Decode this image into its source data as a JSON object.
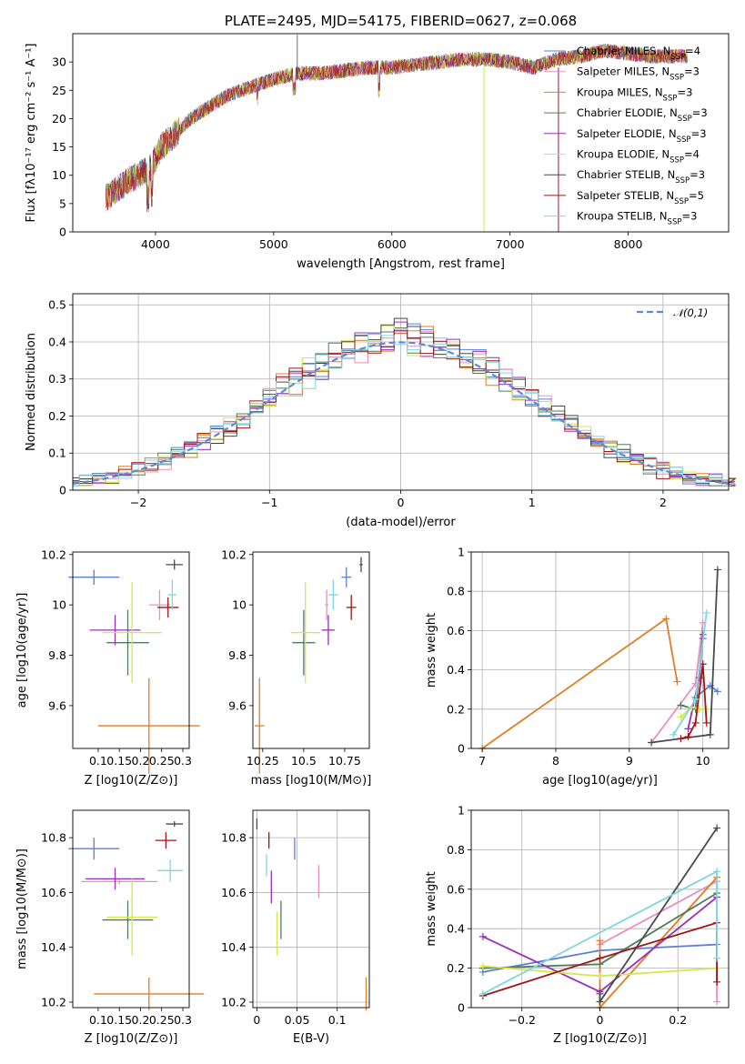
{
  "chart_data": [
    {
      "id": "spectrum",
      "type": "line",
      "title": "PLATE=2495, MJD=54175, FIBERID=0627, z=0.068",
      "xlabel": "wavelength [Angstrom, rest frame]",
      "ylabel": "Flux [fλ10⁻¹⁷ erg cm⁻² s⁻¹ A⁻¹]",
      "xlim": [
        3300,
        8850
      ],
      "ylim": [
        0,
        35
      ],
      "xticks": [
        4000,
        5000,
        6000,
        7000,
        8000
      ],
      "yticks": [
        0,
        5,
        10,
        15,
        20,
        25,
        30
      ],
      "grid": false,
      "legend_position": "right",
      "continuum": {
        "x": [
          3580,
          3700,
          3850,
          3950,
          4050,
          4150,
          4300,
          4450,
          4600,
          4800,
          5000,
          5200,
          5400,
          5600,
          5800,
          6000,
          6200,
          6400,
          6600,
          6800,
          7000,
          7200,
          7400,
          7600,
          7800,
          8000,
          8200,
          8400,
          8500
        ],
        "y": [
          6,
          8,
          10,
          11,
          15,
          17,
          20,
          22,
          24,
          25.5,
          27,
          28,
          28,
          28.5,
          29,
          29,
          29.5,
          30,
          30.5,
          30.5,
          30,
          29,
          30.5,
          31,
          32,
          31.5,
          31,
          31,
          31
        ]
      },
      "series": [
        {
          "name": "Chabrier MILES, N$_{SSP}$=4",
          "color": "#5b7fd6"
        },
        {
          "name": "Salpeter MILES, N$_{SSP}$=3",
          "color": "#e88fc4"
        },
        {
          "name": "Kroupa MILES, N$_{SSP}$=3",
          "color": "#e07d27"
        },
        {
          "name": "Chabrier ELODIE, N$_{SSP}$=3",
          "color": "#4f7d5a"
        },
        {
          "name": "Salpeter ELODIE, N$_{SSP}$=3",
          "color": "#9a2fbd"
        },
        {
          "name": "Kroupa ELODIE, N$_{SSP}$=4",
          "color": "#d6e64d"
        },
        {
          "name": "Chabrier STELIB, N$_{SSP}$=3",
          "color": "#4a4a4a"
        },
        {
          "name": "Salpeter STELIB, N$_{SSP}$=5",
          "color": "#a11414"
        },
        {
          "name": "Kroupa STELIB, N$_{SSP}$=3",
          "color": "#7fd6e0"
        }
      ]
    },
    {
      "id": "residuals",
      "type": "line",
      "xlabel": "(data-model)/error",
      "ylabel": "Normed distribution",
      "xlim": [
        -2.5,
        2.5
      ],
      "ylim": [
        0,
        0.53
      ],
      "xticks": [
        -2,
        -1,
        0,
        1,
        2
      ],
      "yticks": [
        0.0,
        0.1,
        0.2,
        0.3,
        0.4,
        0.5
      ],
      "grid": true,
      "legend_position": "top-right",
      "gaussian_label": "$\\mathcal{N}(0,1)$",
      "gaussian_color": "#5b8ad6",
      "bin_width": 0.1,
      "bin_start": -2.55
    },
    {
      "id": "age_vs_Z",
      "type": "scatter",
      "xlabel": "Z [log10(Z/Z⊙)]",
      "ylabel": "age  [log10(age/yr)]",
      "xlim": [
        0.04,
        0.315
      ],
      "ylim": [
        9.43,
        10.21
      ],
      "xticks": [
        0.1,
        0.15,
        0.2,
        0.25,
        0.3
      ],
      "yticks": [
        9.6,
        9.8,
        10.0,
        10.2
      ],
      "grid": false,
      "points": [
        {
          "x": 0.09,
          "xe": 0.06,
          "y": 10.11,
          "ye": 0.03,
          "color": "#5b7fd6"
        },
        {
          "x": 0.245,
          "xe": 0.025,
          "y": 10.0,
          "ye": 0.06,
          "color": "#e88fc4"
        },
        {
          "x": 0.22,
          "xe": 0.12,
          "y": 9.52,
          "ye": 0.19,
          "color": "#e07d27"
        },
        {
          "x": 0.17,
          "xe": 0.05,
          "y": 9.85,
          "ye": 0.13,
          "color": "#4f7d5a"
        },
        {
          "x": 0.14,
          "xe": 0.06,
          "y": 9.9,
          "ye": 0.06,
          "color": "#9a2fbd"
        },
        {
          "x": 0.18,
          "xe": 0.07,
          "y": 9.89,
          "ye": 0.2,
          "color": "#d6e64d"
        },
        {
          "x": 0.28,
          "xe": 0.02,
          "y": 10.16,
          "ye": 0.02,
          "color": "#4a4a4a"
        },
        {
          "x": 0.265,
          "xe": 0.025,
          "y": 9.99,
          "ye": 0.04,
          "color": "#a11414"
        },
        {
          "x": 0.275,
          "xe": 0.01,
          "y": 10.04,
          "ye": 0.06,
          "color": "#7fd6e0"
        }
      ]
    },
    {
      "id": "age_vs_mass",
      "type": "scatter",
      "xlabel": "mass [log10(M/M⊙)]",
      "ylabel": "",
      "xlim": [
        10.19,
        10.9
      ],
      "ylim": [
        9.43,
        10.21
      ],
      "xticks": [
        10.25,
        10.5,
        10.75
      ],
      "yticks": [
        9.6,
        9.8,
        10.0,
        10.2
      ],
      "grid": false,
      "points": [
        {
          "x": 10.76,
          "xe": 0.03,
          "y": 10.11,
          "ye": 0.04,
          "color": "#5b7fd6"
        },
        {
          "x": 10.64,
          "xe": 0.01,
          "y": 10.0,
          "ye": 0.06,
          "color": "#e88fc4"
        },
        {
          "x": 10.23,
          "xe": 0.03,
          "y": 9.52,
          "ye": 0.19,
          "color": "#e07d27"
        },
        {
          "x": 10.5,
          "xe": 0.07,
          "y": 9.85,
          "ye": 0.13,
          "color": "#4f7d5a"
        },
        {
          "x": 10.65,
          "xe": 0.04,
          "y": 9.9,
          "ye": 0.06,
          "color": "#9a2fbd"
        },
        {
          "x": 10.51,
          "xe": 0.09,
          "y": 9.89,
          "ye": 0.2,
          "color": "#d6e64d"
        },
        {
          "x": 10.85,
          "xe": 0.01,
          "y": 10.16,
          "ye": 0.03,
          "color": "#4a4a4a"
        },
        {
          "x": 10.79,
          "xe": 0.03,
          "y": 9.99,
          "ye": 0.05,
          "color": "#a11414"
        },
        {
          "x": 10.68,
          "xe": 0.03,
          "y": 10.04,
          "ye": 0.06,
          "color": "#7fd6e0"
        }
      ]
    },
    {
      "id": "weight_vs_age",
      "type": "line",
      "xlabel": "age  [log10(age/yr)]",
      "ylabel": "mass weight",
      "xlim": [
        6.85,
        10.35
      ],
      "ylim": [
        0,
        1
      ],
      "xticks": [
        7,
        8,
        9,
        10
      ],
      "yticks": [
        0.0,
        0.2,
        0.4,
        0.6,
        0.8,
        1.0
      ],
      "grid": true,
      "series": [
        {
          "color": "#5b7fd6",
          "x": [
            9.9,
            10.1,
            10.2
          ],
          "y": [
            0.26,
            0.32,
            0.29
          ]
        },
        {
          "color": "#e88fc4",
          "x": [
            9.3,
            9.9,
            10.0
          ],
          "y": [
            0.03,
            0.33,
            0.64
          ]
        },
        {
          "color": "#e07d27",
          "x": [
            7.0,
            9.5,
            9.65
          ],
          "y": [
            0.0,
            0.66,
            0.34
          ]
        },
        {
          "color": "#4f7d5a",
          "x": [
            9.7,
            9.9,
            10.0
          ],
          "y": [
            0.22,
            0.2,
            0.58
          ]
        },
        {
          "color": "#9a2fbd",
          "x": [
            9.8,
            9.95,
            10.0
          ],
          "y": [
            0.1,
            0.36,
            0.56
          ]
        },
        {
          "color": "#d6e64d",
          "x": [
            9.7,
            9.85,
            9.95,
            10.05
          ],
          "y": [
            0.16,
            0.21,
            0.2,
            0.2
          ]
        },
        {
          "color": "#4a4a4a",
          "x": [
            9.3,
            10.1,
            10.2
          ],
          "y": [
            0.03,
            0.07,
            0.91
          ]
        },
        {
          "color": "#a11414",
          "x": [
            9.7,
            9.8,
            9.9,
            10.0,
            10.05
          ],
          "y": [
            0.05,
            0.06,
            0.13,
            0.43,
            0.13
          ]
        },
        {
          "color": "#7fd6e0",
          "x": [
            9.6,
            9.9,
            10.05
          ],
          "y": [
            0.07,
            0.25,
            0.69
          ]
        }
      ]
    },
    {
      "id": "mass_vs_Z",
      "type": "scatter",
      "xlabel": "Z [log10(Z/Z⊙)]",
      "ylabel": "mass [log10(M/M⊙)]",
      "xlim": [
        0.04,
        0.315
      ],
      "ylim": [
        10.18,
        10.9
      ],
      "xticks": [
        0.1,
        0.15,
        0.2,
        0.25,
        0.3
      ],
      "yticks": [
        10.2,
        10.4,
        10.6,
        10.8
      ],
      "grid": false,
      "points": [
        {
          "x": 0.09,
          "xe": 0.06,
          "y": 10.76,
          "ye": 0.04,
          "color": "#5b7fd6"
        },
        {
          "x": 0.15,
          "xe": 0.09,
          "y": 10.64,
          "ye": 0.01,
          "color": "#e88fc4"
        },
        {
          "x": 0.22,
          "xe": 0.13,
          "y": 10.23,
          "ye": 0.06,
          "color": "#e07d27"
        },
        {
          "x": 0.17,
          "xe": 0.06,
          "y": 10.5,
          "ye": 0.07,
          "color": "#4f7d5a"
        },
        {
          "x": 0.14,
          "xe": 0.07,
          "y": 10.65,
          "ye": 0.04,
          "color": "#9a2fbd"
        },
        {
          "x": 0.18,
          "xe": 0.06,
          "y": 10.51,
          "ye": 0.14,
          "color": "#d6e64d"
        },
        {
          "x": 0.28,
          "xe": 0.02,
          "y": 10.85,
          "ye": 0.01,
          "color": "#4a4a4a"
        },
        {
          "x": 0.26,
          "xe": 0.025,
          "y": 10.79,
          "ye": 0.03,
          "color": "#a11414"
        },
        {
          "x": 0.27,
          "xe": 0.03,
          "y": 10.68,
          "ye": 0.04,
          "color": "#7fd6e0"
        }
      ]
    },
    {
      "id": "mass_vs_ebv",
      "type": "scatter",
      "xlabel": "E(B-V)",
      "ylabel": "",
      "xlim": [
        -0.005,
        0.14
      ],
      "ylim": [
        10.18,
        10.9
      ],
      "xticks": [
        0.0,
        0.05,
        0.1
      ],
      "yticks": [
        10.2,
        10.4,
        10.6,
        10.8
      ],
      "grid": true,
      "points": [
        {
          "x": 0.047,
          "y": 10.76,
          "ye": 0.04,
          "color": "#5b7fd6"
        },
        {
          "x": 0.077,
          "y": 10.64,
          "ye": 0.06,
          "color": "#e88fc4"
        },
        {
          "x": 0.136,
          "y": 10.23,
          "ye": 0.06,
          "color": "#e07d27"
        },
        {
          "x": 0.03,
          "y": 10.5,
          "ye": 0.07,
          "color": "#4f7d5a"
        },
        {
          "x": 0.018,
          "y": 10.62,
          "ye": 0.06,
          "color": "#9a2fbd"
        },
        {
          "x": 0.025,
          "y": 10.45,
          "ye": 0.08,
          "color": "#d6e64d"
        },
        {
          "x": 0.0,
          "y": 10.85,
          "ye": 0.02,
          "color": "#4a4a4a"
        },
        {
          "x": 0.015,
          "y": 10.79,
          "ye": 0.03,
          "color": "#a11414"
        },
        {
          "x": 0.012,
          "y": 10.7,
          "ye": 0.04,
          "color": "#7fd6e0"
        }
      ]
    },
    {
      "id": "weight_vs_Z",
      "type": "line",
      "xlabel": "Z [log10(Z/Z⊙)]",
      "ylabel": "mass weight",
      "xlim": [
        -0.33,
        0.33
      ],
      "ylim": [
        0,
        1
      ],
      "xticks": [
        -0.2,
        0.0,
        0.2
      ],
      "yticks": [
        0.0,
        0.2,
        0.4,
        0.6,
        0.8,
        1.0
      ],
      "grid": true,
      "series": [
        {
          "color": "#5b7fd6",
          "x": [
            -0.3,
            0.0,
            0.3
          ],
          "y": [
            0.18,
            0.29,
            0.32
          ]
        },
        {
          "color": "#e88fc4",
          "x": [
            0.0,
            0.3,
            0.3
          ],
          "y": [
            0.32,
            0.64,
            0.03
          ]
        },
        {
          "color": "#e07d27",
          "x": [
            0.0,
            0.0,
            0.3
          ],
          "y": [
            0.34,
            0.0,
            0.66
          ]
        },
        {
          "color": "#4f7d5a",
          "x": [
            -0.3,
            0.0,
            0.3
          ],
          "y": [
            0.2,
            0.22,
            0.58
          ]
        },
        {
          "color": "#9a2fbd",
          "x": [
            -0.3,
            0.0,
            0.3
          ],
          "y": [
            0.36,
            0.08,
            0.56
          ]
        },
        {
          "color": "#d6e64d",
          "x": [
            -0.3,
            0.0,
            0.3
          ],
          "y": [
            0.21,
            0.16,
            0.2
          ]
        },
        {
          "color": "#4a4a4a",
          "x": [
            0.0,
            0.0,
            0.3
          ],
          "y": [
            0.07,
            0.03,
            0.91
          ]
        },
        {
          "color": "#a11414",
          "x": [
            -0.3,
            0.0,
            0.3,
            0.3
          ],
          "y": [
            0.06,
            0.25,
            0.43,
            0.13
          ]
        },
        {
          "color": "#7fd6e0",
          "x": [
            -0.3,
            0.3,
            0.3
          ],
          "y": [
            0.07,
            0.69,
            0.25
          ]
        }
      ]
    }
  ]
}
